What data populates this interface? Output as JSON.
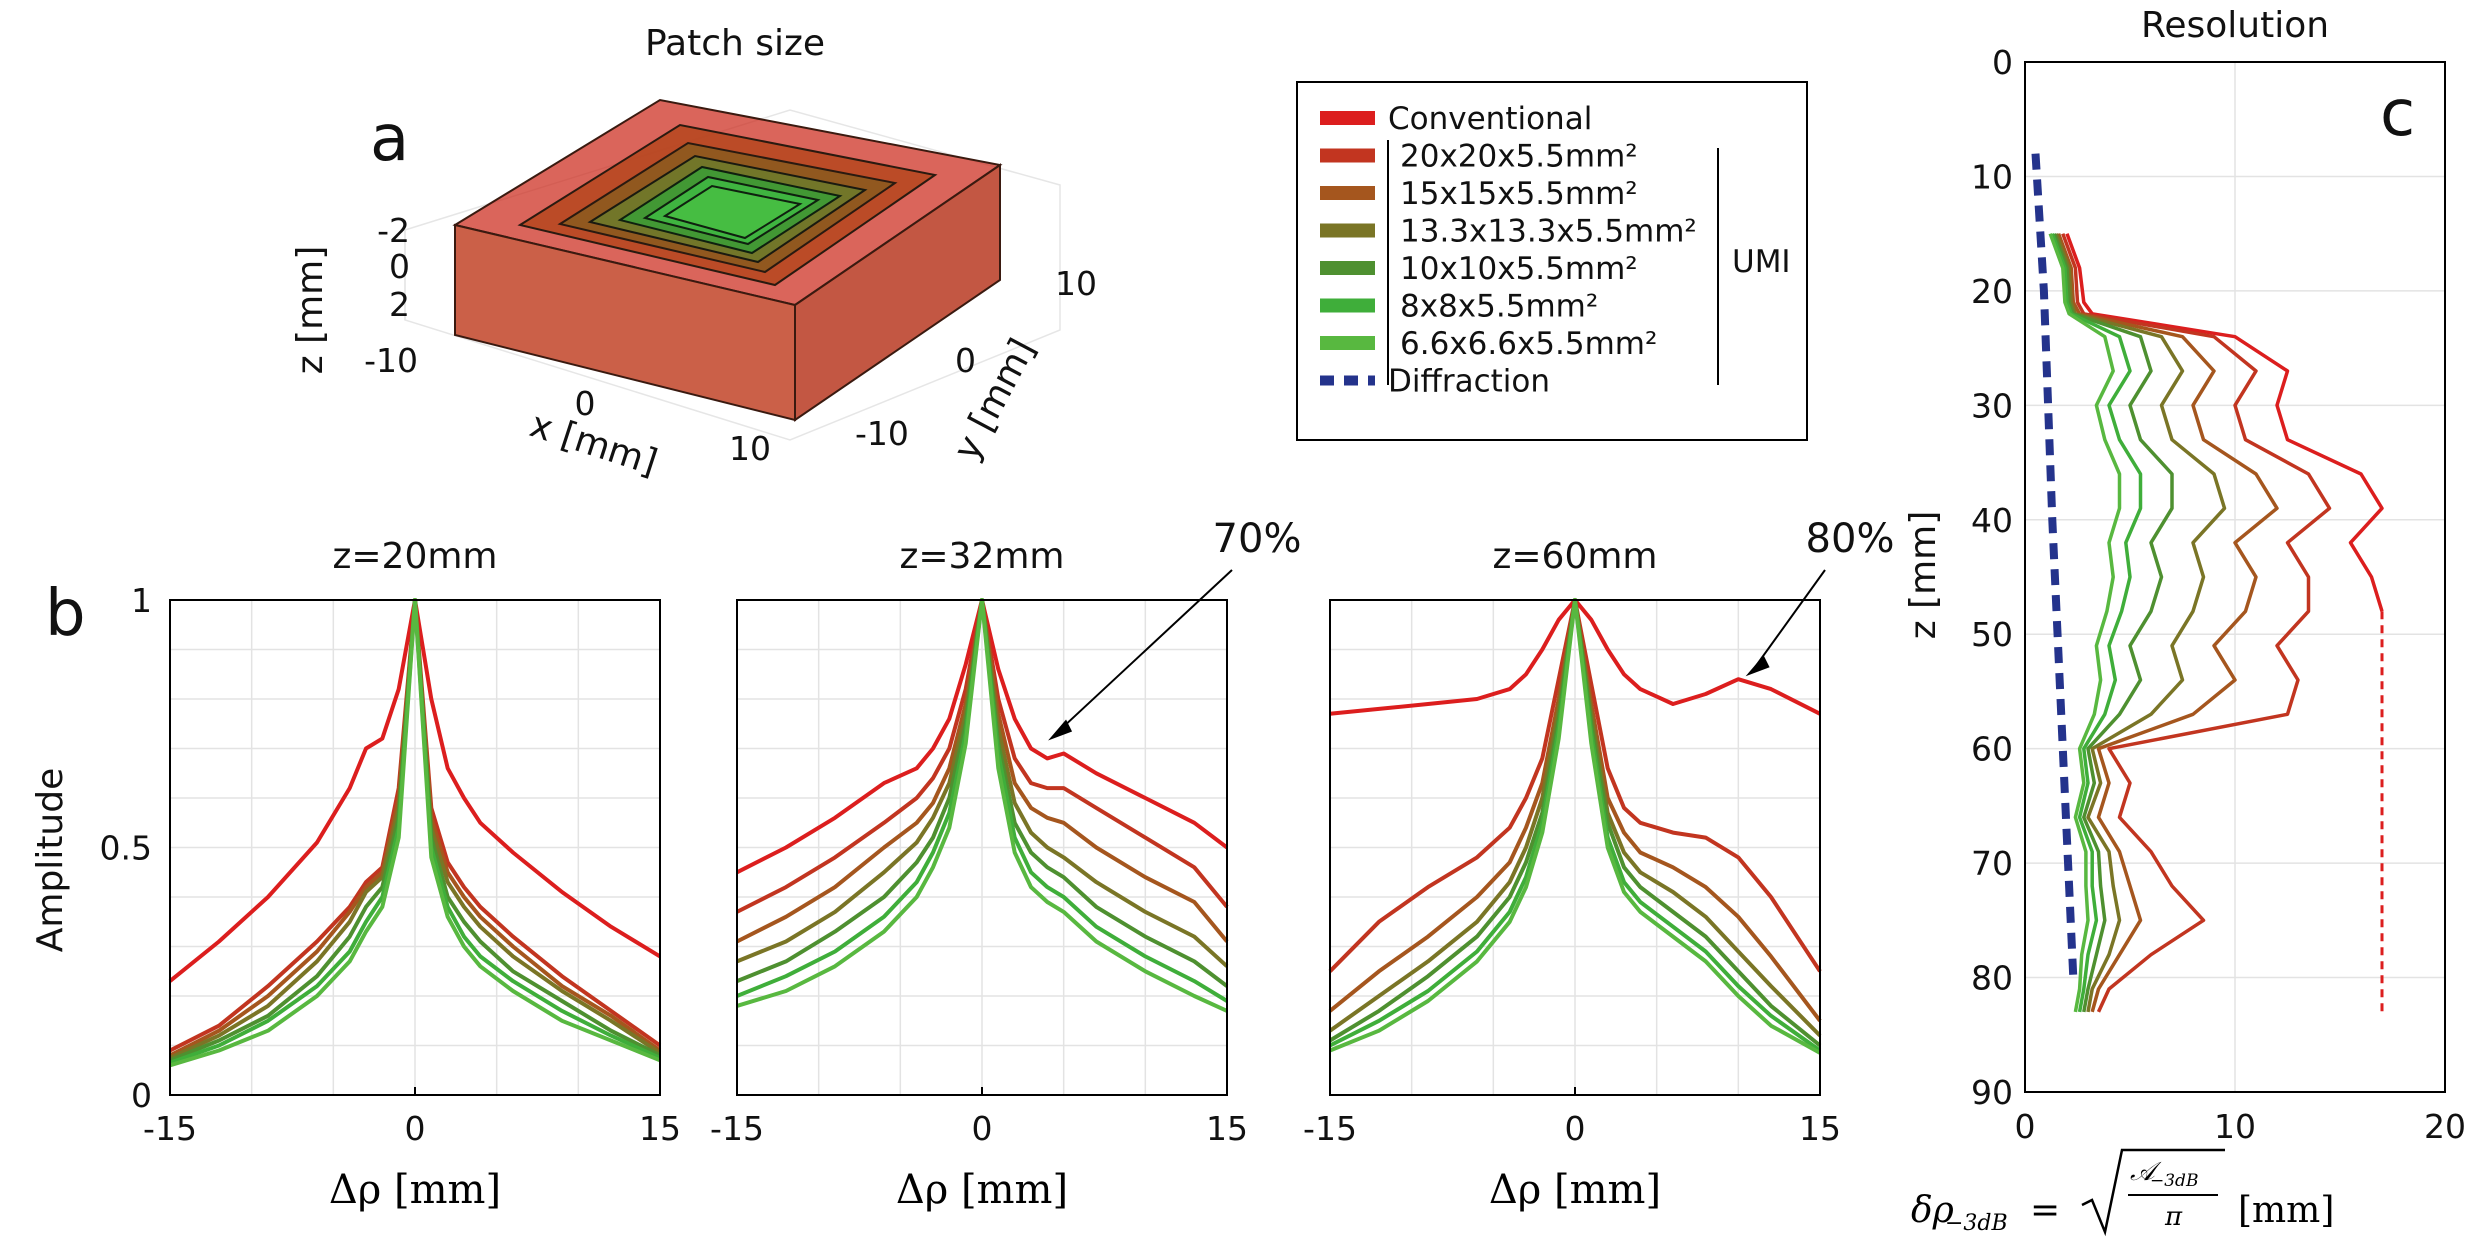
{
  "panel_a": {
    "label": "a",
    "title": "Patch size",
    "z_axis_label": "z [mm]",
    "x_axis_label": "x [mm]",
    "y_axis_label": "y [mm]",
    "z_ticks": [
      "-2",
      "0",
      "2"
    ],
    "x_ticks": [
      "-10",
      "0",
      "10"
    ],
    "y_ticks": [
      "-10",
      "0",
      "10"
    ]
  },
  "legend": {
    "umi_label": "UMI",
    "items": [
      {
        "label": "Conventional",
        "color": "#dc1e1e",
        "style": "solid"
      },
      {
        "label": "20x20x5.5mm²",
        "color": "#c23520",
        "style": "solid"
      },
      {
        "label": "15x15x5.5mm²",
        "color": "#a5561e",
        "style": "solid"
      },
      {
        "label": "13.3x13.3x5.5mm²",
        "color": "#7a7526",
        "style": "solid"
      },
      {
        "label": "10x10x5.5mm²",
        "color": "#4e9030",
        "style": "solid"
      },
      {
        "label": "8x8x5.5mm²",
        "color": "#3fae3a",
        "style": "solid"
      },
      {
        "label": "6.6x6.6x5.5mm²",
        "color": "#58b840",
        "style": "solid"
      },
      {
        "label": "Diffraction",
        "color": "#24338c",
        "style": "dashed"
      }
    ]
  },
  "panel_b": {
    "label": "b",
    "ylabel": "Amplitude",
    "xlabel": "Δρ [mm]"
  },
  "panel_c": {
    "label": "c",
    "title": "Resolution",
    "ylabel": "z [mm]",
    "xlabel_prefix": "δρ",
    "xlabel_sub": "−3dB",
    "xlabel_eq": " = ",
    "xlabel_num": "𝒜",
    "xlabel_num_sub": "−3dB",
    "xlabel_den": "π",
    "xlabel_unit": "[mm]"
  },
  "chart_data": [
    {
      "type": "line",
      "panel": "b1",
      "title": "z=20mm",
      "xlabel": "Δρ [mm]",
      "ylabel": "Amplitude",
      "xlim": [
        -15,
        15
      ],
      "ylim": [
        0,
        1
      ],
      "xticks": [
        -15,
        0,
        15
      ],
      "yticks": [
        0,
        0.5,
        1
      ],
      "x": [
        -15,
        -12,
        -9,
        -6,
        -4,
        -3,
        -2,
        -1,
        0,
        1,
        2,
        3,
        4,
        6,
        9,
        12,
        15
      ],
      "series": [
        {
          "name": "Conventional",
          "values": [
            0.23,
            0.31,
            0.4,
            0.51,
            0.62,
            0.7,
            0.72,
            0.82,
            1.0,
            0.8,
            0.66,
            0.6,
            0.55,
            0.49,
            0.41,
            0.34,
            0.28
          ]
        },
        {
          "name": "20x20x5.5mm²",
          "values": [
            0.09,
            0.14,
            0.22,
            0.31,
            0.38,
            0.43,
            0.46,
            0.62,
            1.0,
            0.58,
            0.47,
            0.42,
            0.38,
            0.32,
            0.24,
            0.17,
            0.1
          ]
        },
        {
          "name": "15x15x5.5mm²",
          "values": [
            0.08,
            0.13,
            0.2,
            0.29,
            0.37,
            0.42,
            0.45,
            0.6,
            1.0,
            0.56,
            0.45,
            0.4,
            0.36,
            0.3,
            0.22,
            0.16,
            0.09
          ]
        },
        {
          "name": "13.3x13.3x5.5mm²",
          "values": [
            0.075,
            0.12,
            0.18,
            0.27,
            0.35,
            0.41,
            0.44,
            0.58,
            1.0,
            0.54,
            0.43,
            0.38,
            0.34,
            0.28,
            0.21,
            0.15,
            0.085
          ]
        },
        {
          "name": "10x10x5.5mm²",
          "values": [
            0.07,
            0.11,
            0.16,
            0.24,
            0.32,
            0.38,
            0.42,
            0.56,
            1.0,
            0.52,
            0.4,
            0.35,
            0.31,
            0.25,
            0.19,
            0.13,
            0.08
          ]
        },
        {
          "name": "8x8x5.5mm²",
          "values": [
            0.065,
            0.1,
            0.15,
            0.22,
            0.29,
            0.35,
            0.4,
            0.54,
            1.0,
            0.5,
            0.38,
            0.32,
            0.28,
            0.23,
            0.17,
            0.12,
            0.075
          ]
        },
        {
          "name": "6.6x6.6x5.5mm²",
          "values": [
            0.06,
            0.09,
            0.13,
            0.2,
            0.27,
            0.33,
            0.38,
            0.52,
            1.0,
            0.48,
            0.36,
            0.3,
            0.26,
            0.21,
            0.15,
            0.11,
            0.07
          ]
        }
      ]
    },
    {
      "type": "line",
      "panel": "b2",
      "title": "z=32mm",
      "xlabel": "Δρ [mm]",
      "xlim": [
        -15,
        15
      ],
      "ylim": [
        0,
        1
      ],
      "xticks": [
        -15,
        0,
        15
      ],
      "yticks": [
        0,
        0.5,
        1
      ],
      "annotation": "70%",
      "annotation_target": [
        3.8,
        0.71
      ],
      "x": [
        -15,
        -12,
        -9,
        -6,
        -4,
        -3,
        -2,
        -1,
        0,
        1,
        2,
        3,
        4,
        5,
        7,
        10,
        13,
        15
      ],
      "series": [
        {
          "name": "Conventional",
          "values": [
            0.45,
            0.5,
            0.56,
            0.63,
            0.66,
            0.7,
            0.76,
            0.87,
            1.0,
            0.86,
            0.76,
            0.7,
            0.68,
            0.69,
            0.65,
            0.6,
            0.55,
            0.5
          ]
        },
        {
          "name": "20x20x5.5mm²",
          "values": [
            0.37,
            0.42,
            0.48,
            0.55,
            0.6,
            0.64,
            0.7,
            0.82,
            1.0,
            0.8,
            0.68,
            0.63,
            0.62,
            0.62,
            0.58,
            0.52,
            0.46,
            0.38
          ]
        },
        {
          "name": "15x15x5.5mm²",
          "values": [
            0.31,
            0.36,
            0.42,
            0.5,
            0.55,
            0.59,
            0.66,
            0.79,
            1.0,
            0.77,
            0.63,
            0.58,
            0.56,
            0.55,
            0.5,
            0.44,
            0.39,
            0.31
          ]
        },
        {
          "name": "13.3x13.3x5.5mm²",
          "values": [
            0.27,
            0.31,
            0.37,
            0.45,
            0.51,
            0.56,
            0.63,
            0.77,
            1.0,
            0.74,
            0.59,
            0.53,
            0.5,
            0.48,
            0.43,
            0.37,
            0.32,
            0.26
          ]
        },
        {
          "name": "10x10x5.5mm²",
          "values": [
            0.23,
            0.27,
            0.33,
            0.4,
            0.47,
            0.52,
            0.6,
            0.75,
            1.0,
            0.71,
            0.55,
            0.49,
            0.46,
            0.44,
            0.38,
            0.32,
            0.27,
            0.22
          ]
        },
        {
          "name": "8x8x5.5mm²",
          "values": [
            0.2,
            0.24,
            0.29,
            0.36,
            0.43,
            0.49,
            0.57,
            0.73,
            1.0,
            0.69,
            0.52,
            0.45,
            0.42,
            0.4,
            0.34,
            0.28,
            0.23,
            0.19
          ]
        },
        {
          "name": "6.6x6.6x5.5mm²",
          "values": [
            0.18,
            0.21,
            0.26,
            0.33,
            0.4,
            0.46,
            0.54,
            0.71,
            1.0,
            0.66,
            0.49,
            0.42,
            0.39,
            0.37,
            0.31,
            0.25,
            0.2,
            0.17
          ]
        }
      ]
    },
    {
      "type": "line",
      "panel": "b3",
      "title": "z=60mm",
      "xlabel": "Δρ [mm]",
      "xlim": [
        -15,
        15
      ],
      "ylim": [
        0,
        1
      ],
      "xticks": [
        -15,
        0,
        15
      ],
      "yticks": [
        0,
        0.5,
        1
      ],
      "annotation": "80%",
      "annotation_target": [
        10.2,
        0.84
      ],
      "x": [
        -15,
        -12,
        -9,
        -6,
        -4,
        -3,
        -2,
        -1,
        0,
        1,
        2,
        3,
        4,
        6,
        8,
        10,
        12,
        15
      ],
      "series": [
        {
          "name": "Conventional",
          "values": [
            0.77,
            0.78,
            0.79,
            0.8,
            0.82,
            0.85,
            0.9,
            0.96,
            1.0,
            0.96,
            0.9,
            0.85,
            0.82,
            0.79,
            0.81,
            0.84,
            0.82,
            0.77
          ]
        },
        {
          "name": "20x20x5.5mm²",
          "values": [
            0.25,
            0.35,
            0.42,
            0.48,
            0.54,
            0.6,
            0.68,
            0.84,
            1.0,
            0.83,
            0.66,
            0.58,
            0.55,
            0.53,
            0.52,
            0.48,
            0.4,
            0.25
          ]
        },
        {
          "name": "15x15x5.5mm²",
          "values": [
            0.17,
            0.25,
            0.32,
            0.4,
            0.47,
            0.54,
            0.63,
            0.8,
            1.0,
            0.79,
            0.6,
            0.53,
            0.49,
            0.46,
            0.42,
            0.36,
            0.28,
            0.15
          ]
        },
        {
          "name": "13.3x13.3x5.5mm²",
          "values": [
            0.13,
            0.2,
            0.27,
            0.35,
            0.43,
            0.5,
            0.6,
            0.78,
            1.0,
            0.77,
            0.57,
            0.49,
            0.45,
            0.41,
            0.36,
            0.29,
            0.22,
            0.12
          ]
        },
        {
          "name": "10x10x5.5mm²",
          "values": [
            0.11,
            0.17,
            0.24,
            0.32,
            0.4,
            0.47,
            0.57,
            0.76,
            1.0,
            0.75,
            0.55,
            0.46,
            0.42,
            0.37,
            0.32,
            0.25,
            0.18,
            0.1
          ]
        },
        {
          "name": "8x8x5.5mm²",
          "values": [
            0.1,
            0.15,
            0.21,
            0.29,
            0.37,
            0.44,
            0.55,
            0.74,
            1.0,
            0.73,
            0.52,
            0.43,
            0.39,
            0.34,
            0.29,
            0.22,
            0.16,
            0.09
          ]
        },
        {
          "name": "6.6x6.6x5.5mm²",
          "values": [
            0.09,
            0.13,
            0.19,
            0.27,
            0.35,
            0.42,
            0.53,
            0.72,
            1.0,
            0.71,
            0.5,
            0.41,
            0.37,
            0.32,
            0.27,
            0.2,
            0.14,
            0.085
          ]
        }
      ]
    },
    {
      "type": "line",
      "panel": "c",
      "title": "Resolution",
      "xlabel": "δρ−3dB = √(𝒜−3dB/π) [mm]",
      "ylabel": "z [mm]",
      "xlim": [
        0,
        20
      ],
      "ylim": [
        0,
        90
      ],
      "y_reversed": true,
      "xticks": [
        0,
        10,
        20
      ],
      "yticks": [
        0,
        10,
        20,
        30,
        40,
        50,
        60,
        70,
        80,
        90
      ],
      "z": [
        15,
        18,
        21,
        22,
        24,
        27,
        30,
        33,
        36,
        39,
        42,
        45,
        48,
        51,
        54,
        57,
        60,
        63,
        66,
        69,
        72,
        75,
        78,
        81,
        83
      ],
      "series": [
        {
          "name": "Conventional",
          "values": [
            2.0,
            2.6,
            2.8,
            3.2,
            10.0,
            12.5,
            12.0,
            12.5,
            16.0,
            17.0,
            15.5,
            16.5,
            17.0,
            null,
            null,
            null,
            null,
            null,
            null,
            null,
            null,
            null,
            null,
            null,
            null
          ]
        },
        {
          "name": "20x20x5.5mm²",
          "values": [
            1.8,
            2.4,
            2.5,
            2.8,
            9.0,
            11.0,
            10.0,
            10.5,
            13.5,
            14.5,
            12.5,
            13.5,
            13.5,
            12.0,
            13.0,
            12.5,
            4.0,
            5.0,
            4.5,
            6.0,
            7.0,
            8.5,
            6.0,
            4.0,
            3.5
          ]
        },
        {
          "name": "15x15x5.5mm²",
          "values": [
            1.6,
            2.2,
            2.3,
            2.6,
            7.5,
            9.0,
            8.0,
            8.5,
            11.0,
            12.0,
            10.0,
            11.0,
            10.5,
            9.0,
            10.0,
            8.0,
            3.5,
            4.0,
            3.5,
            4.5,
            5.0,
            5.5,
            4.5,
            3.5,
            3.2
          ]
        },
        {
          "name": "13.3x13.3x5.5mm²",
          "values": [
            1.5,
            2.1,
            2.2,
            2.4,
            6.5,
            7.5,
            6.5,
            7.0,
            9.0,
            9.5,
            8.0,
            8.5,
            8.0,
            7.0,
            7.5,
            6.0,
            3.2,
            3.6,
            3.0,
            4.0,
            4.2,
            4.5,
            4.0,
            3.2,
            3.0
          ]
        },
        {
          "name": "10x10x5.5mm²",
          "values": [
            1.4,
            2.0,
            2.1,
            2.3,
            5.5,
            6.0,
            5.0,
            5.5,
            7.0,
            7.0,
            6.0,
            6.5,
            6.0,
            5.0,
            5.5,
            4.5,
            3.0,
            3.3,
            2.8,
            3.5,
            3.6,
            3.8,
            3.4,
            3.0,
            2.8
          ]
        },
        {
          "name": "8x8x5.5mm²",
          "values": [
            1.3,
            1.9,
            2.0,
            2.2,
            4.5,
            5.0,
            4.0,
            4.5,
            5.5,
            5.5,
            4.8,
            5.0,
            4.6,
            4.0,
            4.3,
            3.8,
            2.8,
            3.0,
            2.6,
            3.2,
            3.2,
            3.4,
            3.0,
            2.8,
            2.6
          ]
        },
        {
          "name": "6.6x6.6x5.5mm²",
          "values": [
            1.2,
            1.8,
            1.9,
            2.1,
            3.8,
            4.2,
            3.4,
            3.8,
            4.5,
            4.5,
            4.0,
            4.2,
            3.9,
            3.4,
            3.6,
            3.3,
            2.6,
            2.8,
            2.4,
            2.9,
            2.9,
            3.0,
            2.7,
            2.6,
            2.4
          ]
        },
        {
          "name": "Diffraction",
          "style": "dashed",
          "z_values": [
            8,
            20,
            40,
            60,
            80
          ],
          "values": [
            0.5,
            0.9,
            1.3,
            1.8,
            2.3
          ]
        },
        {
          "name": "Conventional (extrapolated)",
          "style": "dotted",
          "z_values": [
            48,
            83
          ],
          "values": [
            17.0,
            17.0
          ]
        }
      ]
    }
  ]
}
